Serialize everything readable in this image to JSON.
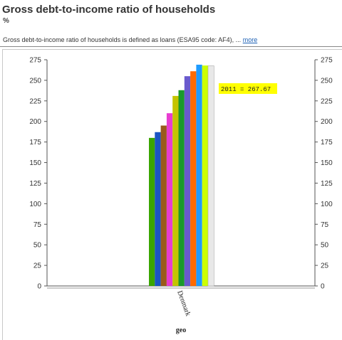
{
  "header": {
    "title": "Gross debt-to-income ratio of households",
    "unit": "%",
    "description": "Gross debt-to-income ratio of households is defined as loans (ESA95 code: AF4), ...",
    "more_label": "more"
  },
  "tooltip": {
    "text": "2011 = 267.67"
  },
  "chart_data": {
    "type": "bar",
    "categories": [
      "Denmark"
    ],
    "xlabel": "geo",
    "ylabel": "",
    "ylim": [
      0,
      275
    ],
    "yticks": [
      0,
      25,
      50,
      75,
      100,
      125,
      150,
      175,
      200,
      225,
      250,
      275
    ],
    "grid": false,
    "series": [
      {
        "color": "#3aa500",
        "values": [
          180
        ]
      },
      {
        "color": "#1b54c4",
        "values": [
          187
        ]
      },
      {
        "color": "#9a5a1b",
        "values": [
          195
        ]
      },
      {
        "color": "#e83cd0",
        "values": [
          210
        ]
      },
      {
        "color": "#c4c400",
        "values": [
          231
        ]
      },
      {
        "color": "#1a9a2b",
        "values": [
          238
        ]
      },
      {
        "color": "#6a5acd",
        "values": [
          255
        ]
      },
      {
        "color": "#ff6a00",
        "values": [
          261
        ]
      },
      {
        "color": "#1e9bff",
        "values": [
          269
        ]
      },
      {
        "color": "#ccff00",
        "values": [
          268
        ]
      },
      {
        "name": "2011",
        "color": "#e8e8e8",
        "values": [
          267.67
        ]
      }
    ]
  }
}
